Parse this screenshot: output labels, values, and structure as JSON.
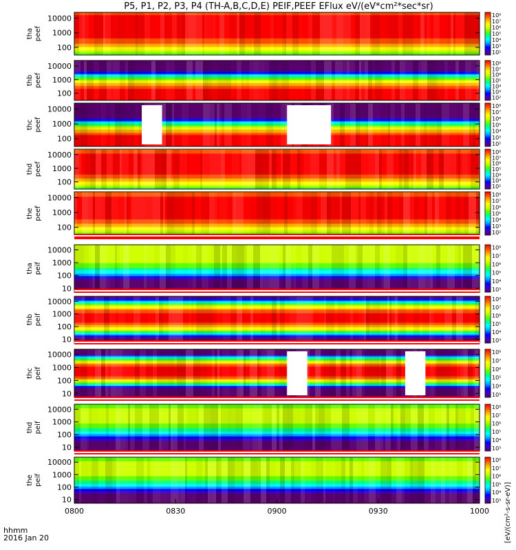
{
  "chart_data": {
    "type": "heatmap",
    "title": "P5, P1, P2, P3, P4 (TH-A,B,C,D,E) PEIF,PEEF EFlux eV/(eV*cm²*sec*sr)",
    "x": {
      "ticks": [
        "0800",
        "0830",
        "0900",
        "0930",
        "1000"
      ],
      "tick_hours": [
        8.0,
        8.5,
        9.0,
        9.5,
        10.0
      ],
      "range_hours": [
        8.0,
        10.0
      ],
      "label_line1": "hhmm",
      "label_line2": "2016 Jan 20"
    },
    "colorbar_label": "[eV/(cm²-s-sr-eV)]",
    "colormap": [
      "#5a006e",
      "#3a00c8",
      "#0000ff",
      "#00a0ff",
      "#00ffff",
      "#00ff90",
      "#60ff00",
      "#d0ff00",
      "#ffff00",
      "#ffb000",
      "#ff5000",
      "#ff0000"
    ],
    "gap_color": "#ffffff",
    "panels": [
      {
        "name": "tha",
        "product": "peef",
        "y_ticks": [
          "10000",
          "1000",
          "100"
        ],
        "y_tick_values": [
          10000,
          1000,
          100
        ],
        "yrange": [
          30,
          25000
        ],
        "cb_ticks": [
          "10⁸",
          "10⁷",
          "10⁶",
          "10⁵",
          "10⁴",
          "10³",
          "10²"
        ],
        "cb_range": [
          100,
          100000000
        ],
        "peak_energy": 2500,
        "peak_width": 1.5,
        "peak_log": 8.0,
        "gaps_hours": []
      },
      {
        "name": "thb",
        "product": "peef",
        "y_ticks": [
          "10000",
          "1000",
          "100"
        ],
        "y_tick_values": [
          10000,
          1000,
          100
        ],
        "yrange": [
          30,
          25000
        ],
        "cb_ticks": [
          "10⁸",
          "10⁷",
          "10⁶",
          "10⁵",
          "10⁴",
          "10³",
          "10²"
        ],
        "cb_range": [
          100,
          100000000
        ],
        "peak_energy": 45,
        "peak_width": 1.1,
        "peak_log": 8.2,
        "gaps_hours": []
      },
      {
        "name": "thc",
        "product": "peef",
        "y_ticks": [
          "10000",
          "1000",
          "100"
        ],
        "y_tick_values": [
          10000,
          1000,
          100
        ],
        "yrange": [
          30,
          25000
        ],
        "cb_ticks": [
          "10⁸",
          "10⁷",
          "10⁶",
          "10⁵",
          "10⁴",
          "10³",
          "10²"
        ],
        "cb_range": [
          100,
          100000000
        ],
        "peak_energy": 40,
        "peak_width": 1.0,
        "peak_log": 8.2,
        "gaps_hours": [
          [
            8.333,
            8.433
          ],
          [
            9.05,
            9.267
          ]
        ]
      },
      {
        "name": "thd",
        "product": "peef",
        "y_ticks": [
          "10000",
          "1000",
          "100"
        ],
        "y_tick_values": [
          10000,
          1000,
          100
        ],
        "yrange": [
          30,
          25000
        ],
        "cb_ticks": [
          "10⁸",
          "10⁷",
          "10⁶",
          "10⁵",
          "10⁴",
          "10³",
          "10²"
        ],
        "cb_range": [
          100,
          100000000
        ],
        "peak_energy": 2000,
        "peak_width": 1.4,
        "peak_log": 8.0,
        "gaps_hours": []
      },
      {
        "name": "the",
        "product": "peef",
        "y_ticks": [
          "10000",
          "1000",
          "100"
        ],
        "y_tick_values": [
          10000,
          1000,
          100
        ],
        "yrange": [
          30,
          25000
        ],
        "cb_ticks": [
          "10⁸",
          "10⁷",
          "10⁶",
          "10⁵",
          "10⁴",
          "10³",
          "10²"
        ],
        "cb_range": [
          100,
          100000000
        ],
        "peak_energy": 2000,
        "peak_width": 1.4,
        "peak_log": 8.0,
        "gaps_hours": []
      },
      {
        "name": "tha",
        "product": "peif",
        "y_ticks": [
          "10000",
          "1000",
          "100",
          "10"
        ],
        "y_tick_values": [
          10000,
          1000,
          100,
          10
        ],
        "yrange": [
          5,
          25000
        ],
        "cb_ticks": [
          "10⁸",
          "10⁷",
          "10⁶",
          "10⁵",
          "10⁴",
          "10³"
        ],
        "cb_range": [
          1000,
          100000000
        ],
        "peak_energy": 5000,
        "peak_width": 1.6,
        "peak_log": 6.3,
        "gaps_hours": []
      },
      {
        "name": "thb",
        "product": "peif",
        "y_ticks": [
          "10000",
          "1000",
          "100",
          "10"
        ],
        "y_tick_values": [
          10000,
          1000,
          100,
          10
        ],
        "yrange": [
          5,
          25000
        ],
        "cb_ticks": [
          "10⁸",
          "10⁷",
          "10⁶",
          "10⁵",
          "10⁴",
          "10³"
        ],
        "cb_range": [
          1000,
          100000000
        ],
        "peak_energy": 500,
        "peak_width": 1.0,
        "peak_log": 7.8,
        "gaps_hours": []
      },
      {
        "name": "thc",
        "product": "peif",
        "y_ticks": [
          "10000",
          "1000",
          "100",
          "10"
        ],
        "y_tick_values": [
          10000,
          1000,
          100,
          10
        ],
        "yrange": [
          5,
          25000
        ],
        "cb_ticks": [
          "10⁸",
          "10⁷",
          "10⁶",
          "10⁵",
          "10⁴",
          "10³"
        ],
        "cb_range": [
          1000,
          100000000
        ],
        "peak_energy": 500,
        "peak_width": 0.8,
        "peak_log": 8.0,
        "gaps_hours": [
          [
            9.05,
            9.15
          ],
          [
            9.633,
            9.733
          ]
        ]
      },
      {
        "name": "thd",
        "product": "peif",
        "y_ticks": [
          "10000",
          "1000",
          "100",
          "10"
        ],
        "y_tick_values": [
          10000,
          1000,
          100,
          10
        ],
        "yrange": [
          5,
          25000
        ],
        "cb_ticks": [
          "10⁸",
          "10⁷",
          "10⁶",
          "10⁵",
          "10⁴",
          "10³"
        ],
        "cb_range": [
          1000,
          100000000
        ],
        "peak_energy": 3000,
        "peak_width": 1.6,
        "peak_log": 6.2,
        "gaps_hours": []
      },
      {
        "name": "the",
        "product": "peif",
        "y_ticks": [
          "10000",
          "1000",
          "100",
          "10"
        ],
        "y_tick_values": [
          10000,
          1000,
          100,
          10
        ],
        "yrange": [
          5,
          25000
        ],
        "cb_ticks": [
          "10⁸",
          "10⁷",
          "10⁶",
          "10⁵",
          "10⁴",
          "10³"
        ],
        "cb_range": [
          1000,
          100000000
        ],
        "peak_energy": 3000,
        "peak_width": 1.6,
        "peak_log": 6.2,
        "gaps_hours": []
      }
    ]
  }
}
